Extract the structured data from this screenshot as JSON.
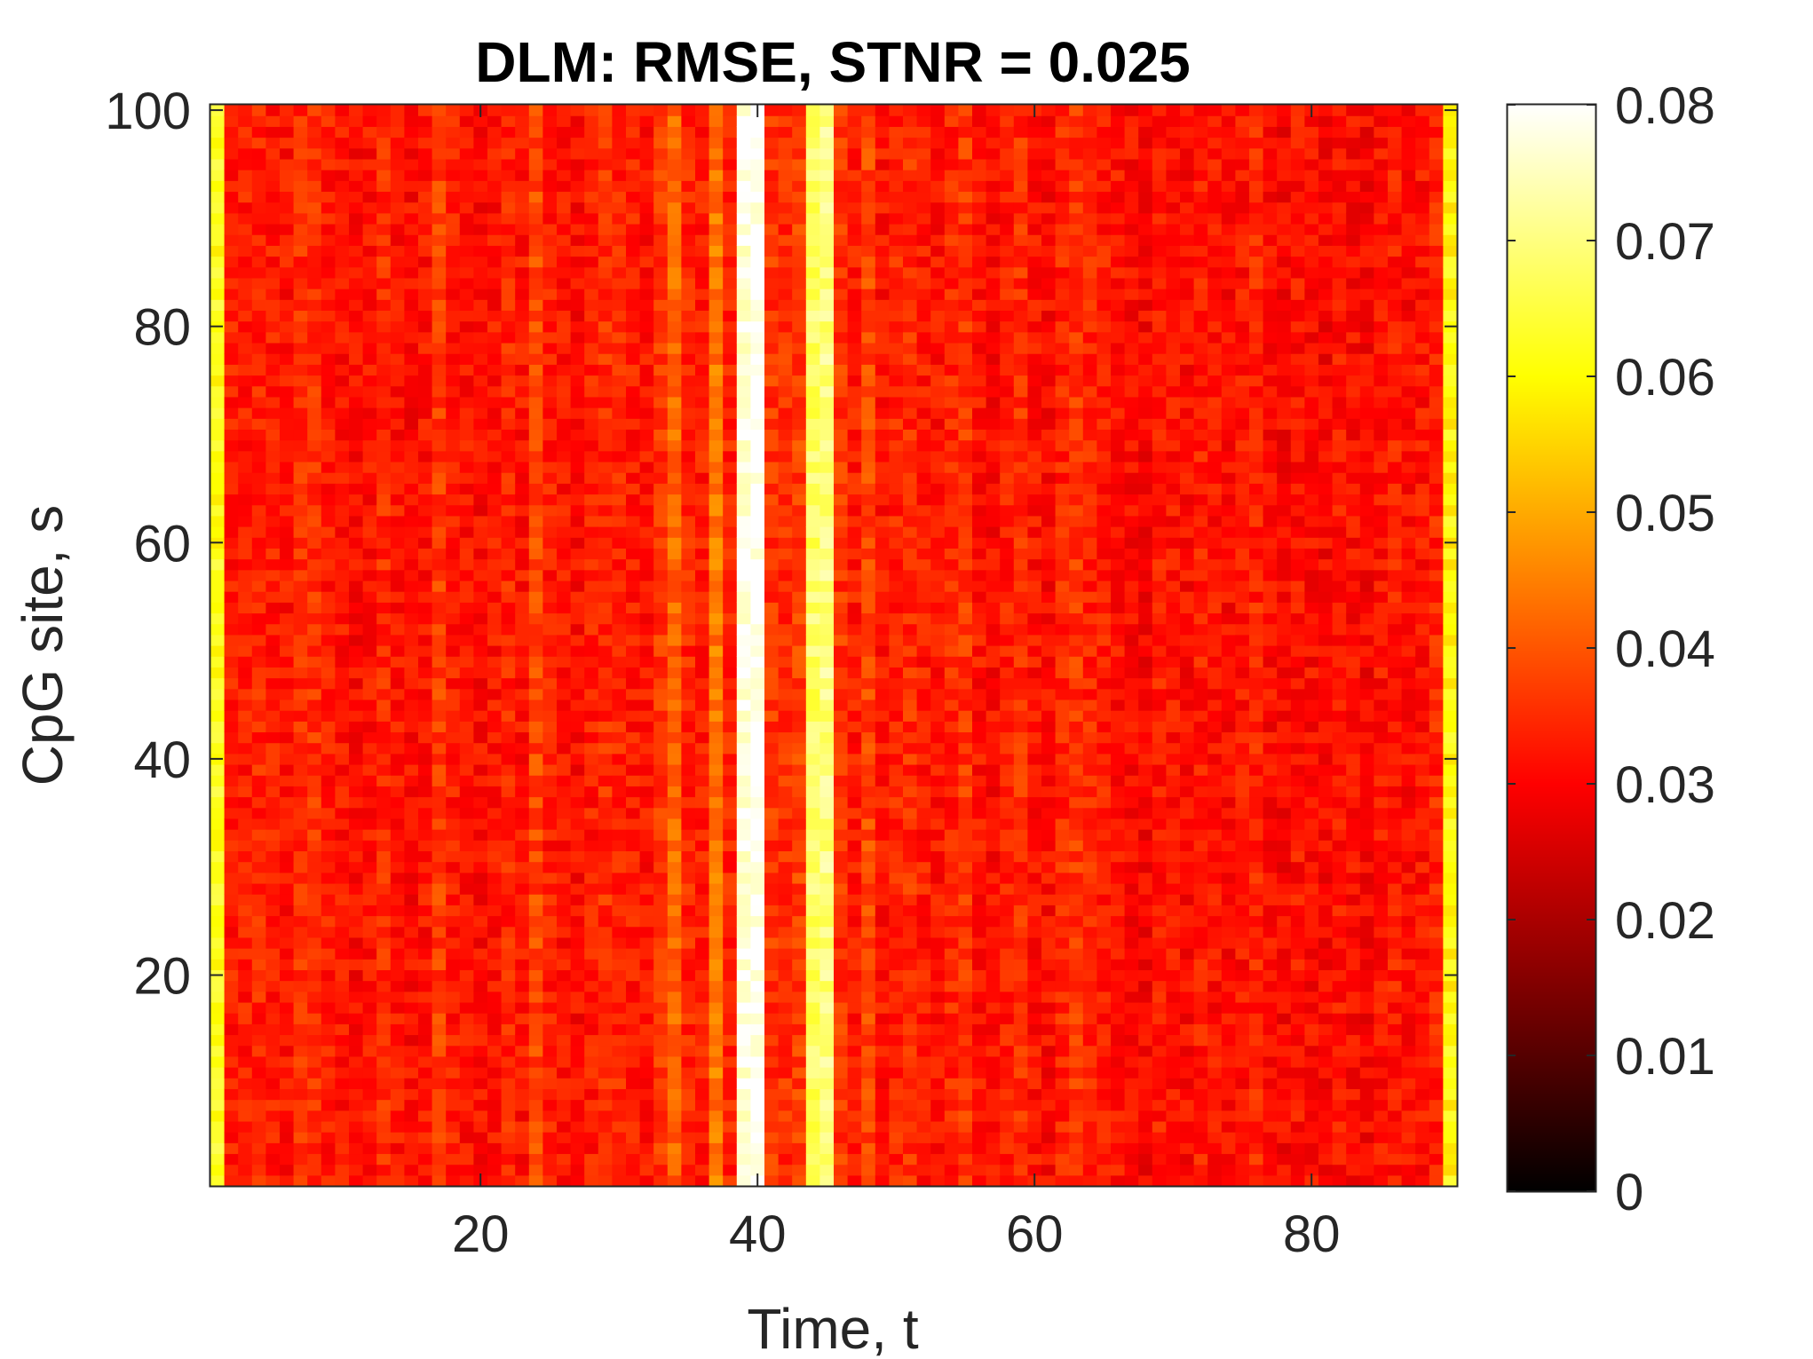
{
  "chart_data": {
    "type": "heatmap",
    "title": "DLM: RMSE, STNR = 0.025",
    "xlabel": "Time, t",
    "ylabel": "CpG site, s",
    "x_range": [
      1,
      90
    ],
    "y_range": [
      1,
      100
    ],
    "x_ticks": [
      "20",
      "40",
      "60",
      "80"
    ],
    "x_tick_values": [
      20,
      40,
      60,
      80
    ],
    "y_ticks": [
      "20",
      "40",
      "60",
      "80",
      "100"
    ],
    "y_tick_values": [
      20,
      40,
      60,
      80,
      100
    ],
    "colormap": "hot",
    "clim": [
      0,
      0.08
    ],
    "colorbar_ticks": [
      "0",
      "0.01",
      "0.02",
      "0.03",
      "0.04",
      "0.05",
      "0.06",
      "0.07",
      "0.08"
    ],
    "colorbar_tick_values": [
      0,
      0.01,
      0.02,
      0.03,
      0.04,
      0.05,
      0.06,
      0.07,
      0.08
    ],
    "typical_value": 0.034,
    "column_profile": {
      "note_free": true,
      "t": [
        1,
        2,
        3,
        4,
        5,
        6,
        7,
        8,
        9,
        10,
        11,
        12,
        13,
        14,
        15,
        16,
        17,
        18,
        19,
        20,
        21,
        22,
        23,
        24,
        25,
        26,
        27,
        28,
        29,
        30,
        31,
        32,
        33,
        34,
        35,
        36,
        37,
        38,
        39,
        40,
        41,
        42,
        43,
        44,
        45,
        46,
        47,
        48,
        49,
        50,
        51,
        52,
        53,
        54,
        55,
        56,
        57,
        58,
        59,
        60,
        61,
        62,
        63,
        64,
        65,
        66,
        67,
        68,
        69,
        70,
        71,
        72,
        73,
        74,
        75,
        76,
        77,
        78,
        79,
        80,
        81,
        82,
        83,
        84,
        85,
        86,
        87,
        88,
        89,
        90
      ],
      "mean_rmse": [
        0.062,
        0.033,
        0.033,
        0.034,
        0.033,
        0.032,
        0.035,
        0.036,
        0.033,
        0.032,
        0.031,
        0.032,
        0.035,
        0.032,
        0.031,
        0.032,
        0.037,
        0.033,
        0.032,
        0.031,
        0.032,
        0.034,
        0.032,
        0.038,
        0.033,
        0.032,
        0.031,
        0.033,
        0.035,
        0.034,
        0.033,
        0.032,
        0.036,
        0.042,
        0.034,
        0.033,
        0.044,
        0.034,
        0.078,
        0.08,
        0.036,
        0.035,
        0.037,
        0.068,
        0.07,
        0.036,
        0.033,
        0.038,
        0.032,
        0.034,
        0.035,
        0.033,
        0.032,
        0.034,
        0.036,
        0.032,
        0.031,
        0.033,
        0.035,
        0.032,
        0.031,
        0.034,
        0.036,
        0.034,
        0.033,
        0.032,
        0.031,
        0.03,
        0.033,
        0.032,
        0.031,
        0.033,
        0.032,
        0.031,
        0.032,
        0.034,
        0.031,
        0.03,
        0.032,
        0.031,
        0.03,
        0.032,
        0.031,
        0.03,
        0.032,
        0.033,
        0.031,
        0.032,
        0.034,
        0.06
      ]
    }
  }
}
